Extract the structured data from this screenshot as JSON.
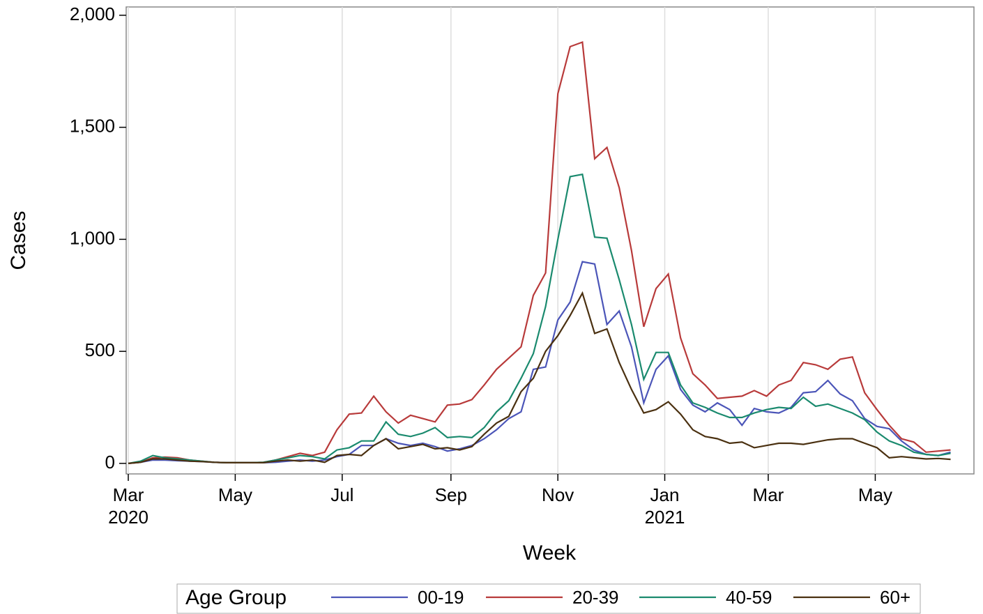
{
  "chart_data": {
    "type": "line",
    "x_label": "Week",
    "y_label": "Cases",
    "legend_title": "Age Group",
    "legend_position": "bottom",
    "x": [
      0,
      1,
      2,
      3,
      4,
      5,
      6,
      7,
      8,
      9,
      10,
      11,
      12,
      13,
      14,
      15,
      16,
      17,
      18,
      19,
      20,
      21,
      22,
      23,
      24,
      25,
      26,
      27,
      28,
      29,
      30,
      31,
      32,
      33,
      34,
      35,
      36,
      37,
      38,
      39,
      40,
      41,
      42,
      43,
      44,
      45,
      46,
      47,
      48,
      49,
      50,
      51,
      52,
      53,
      54,
      55,
      56,
      57,
      58,
      59,
      60,
      61,
      62,
      63,
      64,
      65,
      66,
      67
    ],
    "xlim": [
      -0.17,
      68.9
    ],
    "xticks": [
      {
        "value": 0,
        "label": "Mar\n2020"
      },
      {
        "value": 8.714,
        "label": "May"
      },
      {
        "value": 17.43,
        "label": "Jul"
      },
      {
        "value": 26.29,
        "label": "Sep"
      },
      {
        "value": 35,
        "label": "Nov"
      },
      {
        "value": 43.71,
        "label": "Jan\n2021"
      },
      {
        "value": 52.14,
        "label": "Mar"
      },
      {
        "value": 60.86,
        "label": "May"
      }
    ],
    "ylim": [
      -47,
      2037
    ],
    "yticks": [
      0,
      {
        "value": 500,
        "label": "500"
      },
      {
        "value": 1000,
        "label": "1,000"
      },
      {
        "value": 1500,
        "label": "1,500"
      },
      {
        "value": 2000,
        "label": "2,000"
      }
    ],
    "grid": "x",
    "series": [
      {
        "name": "00-19",
        "color": "#4b55b8",
        "values": [
          0,
          5,
          15,
          15,
          12,
          10,
          8,
          5,
          3,
          3,
          3,
          3,
          5,
          10,
          15,
          10,
          15,
          30,
          40,
          80,
          80,
          110,
          90,
          80,
          90,
          75,
          55,
          65,
          80,
          110,
          150,
          200,
          230,
          420,
          430,
          640,
          720,
          900,
          890,
          620,
          680,
          520,
          270,
          420,
          480,
          330,
          260,
          230,
          270,
          240,
          170,
          245,
          230,
          225,
          250,
          315,
          320,
          370,
          310,
          280,
          200,
          165,
          155,
          100,
          60,
          40,
          35,
          50
        ]
      },
      {
        "name": "20-39",
        "color": "#b83a3a",
        "values": [
          0,
          5,
          25,
          28,
          25,
          15,
          10,
          5,
          3,
          3,
          3,
          5,
          15,
          30,
          45,
          35,
          50,
          150,
          220,
          225,
          300,
          230,
          180,
          215,
          200,
          185,
          260,
          265,
          285,
          350,
          420,
          470,
          520,
          750,
          850,
          1650,
          1860,
          1880,
          1360,
          1410,
          1230,
          950,
          610,
          780,
          845,
          560,
          400,
          350,
          290,
          295,
          300,
          325,
          300,
          350,
          370,
          450,
          440,
          420,
          465,
          475,
          315,
          240,
          170,
          110,
          95,
          50,
          55,
          60
        ]
      },
      {
        "name": "40-59",
        "color": "#1a8a6e",
        "values": [
          0,
          10,
          35,
          25,
          20,
          15,
          10,
          5,
          3,
          3,
          3,
          5,
          15,
          25,
          35,
          30,
          20,
          60,
          70,
          100,
          100,
          185,
          130,
          120,
          135,
          160,
          115,
          120,
          115,
          160,
          230,
          280,
          380,
          490,
          700,
          1000,
          1280,
          1290,
          1010,
          1005,
          820,
          620,
          375,
          495,
          495,
          350,
          270,
          250,
          225,
          205,
          205,
          225,
          240,
          250,
          245,
          295,
          255,
          265,
          245,
          225,
          195,
          140,
          100,
          80,
          50,
          40,
          35,
          45
        ]
      },
      {
        "name": "60+",
        "color": "#4a3010",
        "values": [
          0,
          5,
          20,
          20,
          15,
          10,
          8,
          5,
          3,
          3,
          3,
          3,
          10,
          15,
          10,
          15,
          5,
          35,
          40,
          35,
          80,
          110,
          65,
          75,
          85,
          65,
          70,
          60,
          75,
          130,
          180,
          210,
          320,
          380,
          500,
          570,
          660,
          760,
          580,
          600,
          450,
          330,
          225,
          240,
          275,
          220,
          150,
          120,
          110,
          90,
          95,
          70,
          80,
          90,
          90,
          85,
          95,
          105,
          110,
          110,
          90,
          70,
          25,
          30,
          25,
          20,
          22,
          18
        ]
      }
    ]
  }
}
